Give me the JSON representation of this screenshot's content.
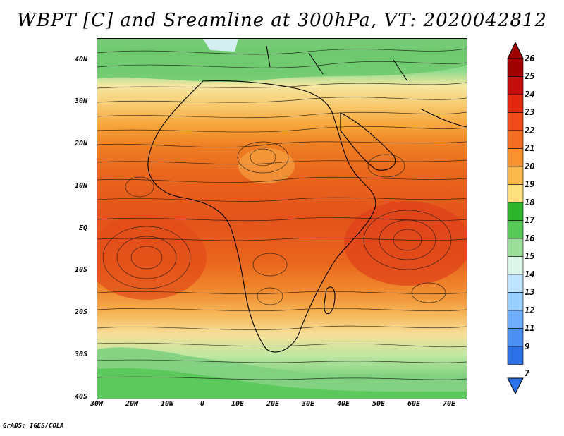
{
  "title": "WBPT [C] and Sreamline at 300hPa, VT: 2020042812",
  "footer": "GrADS: IGES/COLA",
  "map": {
    "lat_labels": [
      "40N",
      "30N",
      "20N",
      "10N",
      "EQ",
      "10S",
      "20S",
      "30S",
      "40S"
    ],
    "lon_labels": [
      "30W",
      "20W",
      "10W",
      "0",
      "10E",
      "20E",
      "30E",
      "40E",
      "50E",
      "60E",
      "70E"
    ]
  },
  "colorbar": {
    "levels": [
      "26",
      "25",
      "24",
      "23",
      "22",
      "21",
      "20",
      "19",
      "18",
      "17",
      "16",
      "15",
      "14",
      "13",
      "12",
      "11",
      "9",
      "7"
    ],
    "colors": [
      "#a00000",
      "#c40d0d",
      "#e6260f",
      "#f04a1a",
      "#f36d22",
      "#f7922e",
      "#f9b84b",
      "#fde07e",
      "#2db42d",
      "#58c858",
      "#9ade9a",
      "#ddf6ea",
      "#bfe4ff",
      "#98cdff",
      "#6faefc",
      "#4b8ff3",
      "#2b70e6"
    ]
  }
}
